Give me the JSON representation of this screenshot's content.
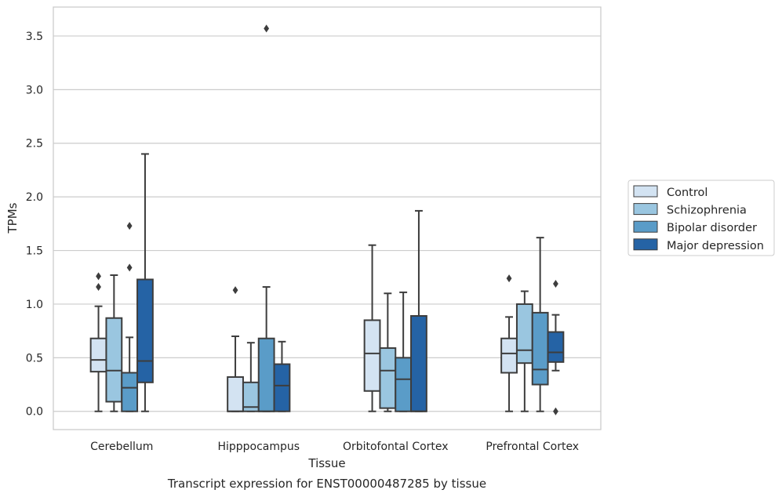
{
  "chart_data": {
    "type": "box",
    "xlabel": "Tissue",
    "ylabel": "TPMs",
    "caption": "Transcript expression for ENST00000487285 by tissue",
    "ylim": [
      -0.17,
      3.77
    ],
    "yticks": [
      "0.0",
      "0.5",
      "1.0",
      "1.5",
      "2.0",
      "2.5",
      "3.0",
      "3.5"
    ],
    "grid": "horizontal",
    "legend_position": "right",
    "categories": [
      "Cerebellum",
      "Hipppocampus",
      "Orbitofontal Cortex",
      "Prefrontal Cortex"
    ],
    "series": [
      {
        "name": "Control",
        "color": "#d3e3f2",
        "boxes": [
          {
            "whislo": 0.0,
            "q1": 0.37,
            "med": 0.48,
            "q3": 0.68,
            "whishi": 0.98,
            "fliers": [
              1.16,
              1.26
            ]
          },
          {
            "whislo": 0.0,
            "q1": 0.0,
            "med": 0.0,
            "q3": 0.32,
            "whishi": 0.7,
            "fliers": [
              1.13
            ]
          },
          {
            "whislo": 0.0,
            "q1": 0.19,
            "med": 0.54,
            "q3": 0.85,
            "whishi": 1.55,
            "fliers": []
          },
          {
            "whislo": 0.0,
            "q1": 0.36,
            "med": 0.54,
            "q3": 0.68,
            "whishi": 0.88,
            "fliers": [
              1.24
            ]
          }
        ]
      },
      {
        "name": "Schizophrenia",
        "color": "#9ac6e0",
        "boxes": [
          {
            "whislo": 0.0,
            "q1": 0.09,
            "med": 0.38,
            "q3": 0.87,
            "whishi": 1.27,
            "fliers": []
          },
          {
            "whislo": 0.0,
            "q1": 0.0,
            "med": 0.04,
            "q3": 0.27,
            "whishi": 0.64,
            "fliers": []
          },
          {
            "whislo": 0.0,
            "q1": 0.03,
            "med": 0.38,
            "q3": 0.59,
            "whishi": 1.1,
            "fliers": []
          },
          {
            "whislo": 0.0,
            "q1": 0.45,
            "med": 0.57,
            "q3": 1.0,
            "whishi": 1.12,
            "fliers": []
          }
        ]
      },
      {
        "name": "Bipolar disorder",
        "color": "#5a9cc8",
        "boxes": [
          {
            "whislo": 0.0,
            "q1": 0.0,
            "med": 0.22,
            "q3": 0.36,
            "whishi": 0.69,
            "fliers": [
              1.34,
              1.73
            ]
          },
          {
            "whislo": 0.0,
            "q1": 0.0,
            "med": 0.0,
            "q3": 0.68,
            "whishi": 1.16,
            "fliers": [
              3.57
            ]
          },
          {
            "whislo": 0.0,
            "q1": 0.0,
            "med": 0.3,
            "q3": 0.5,
            "whishi": 1.11,
            "fliers": []
          },
          {
            "whislo": 0.0,
            "q1": 0.25,
            "med": 0.39,
            "q3": 0.92,
            "whishi": 1.62,
            "fliers": []
          }
        ]
      },
      {
        "name": "Major depression",
        "color": "#2563a5",
        "boxes": [
          {
            "whislo": 0.0,
            "q1": 0.27,
            "med": 0.47,
            "q3": 1.23,
            "whishi": 2.4,
            "fliers": []
          },
          {
            "whislo": 0.0,
            "q1": 0.0,
            "med": 0.24,
            "q3": 0.44,
            "whishi": 0.65,
            "fliers": []
          },
          {
            "whislo": 0.0,
            "q1": 0.0,
            "med": 0.0,
            "q3": 0.89,
            "whishi": 1.87,
            "fliers": []
          },
          {
            "whislo": 0.38,
            "q1": 0.46,
            "med": 0.55,
            "q3": 0.74,
            "whishi": 0.9,
            "fliers": [
              0.0,
              1.19
            ]
          }
        ]
      }
    ]
  }
}
